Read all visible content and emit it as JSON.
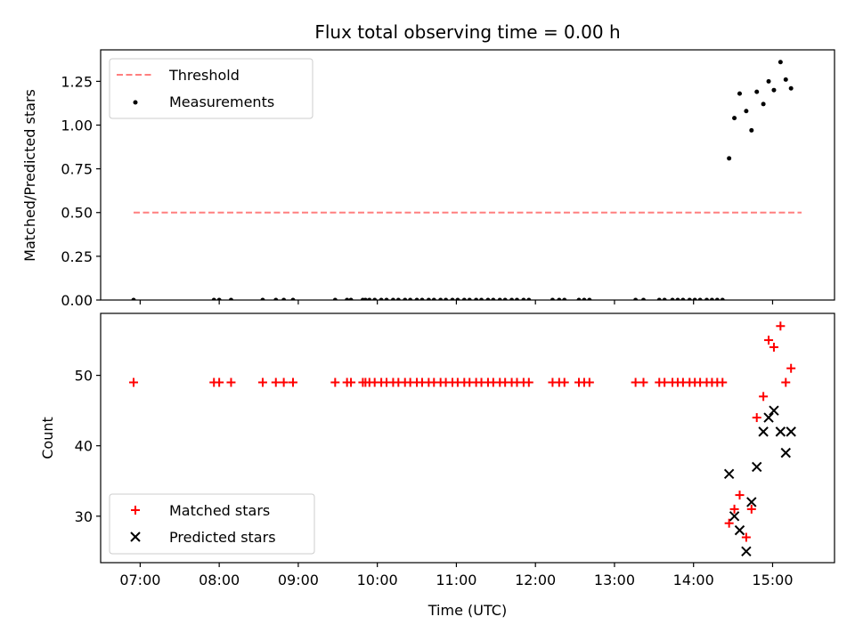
{
  "colors": {
    "measurement": "#000000",
    "threshold": "#ff7f7f",
    "matched": "#ff0000",
    "predicted": "#000000"
  },
  "chart_data": [
    {
      "type": "scatter",
      "title": "Flux total observing time = 0.00 h",
      "xlabel": "",
      "ylabel": "Matched/Predicted stars",
      "xlim": [
        "06:30",
        "15:47"
      ],
      "ylim": [
        0,
        1.43
      ],
      "yticks": [
        "0.00",
        "0.25",
        "0.50",
        "0.75",
        "1.00",
        "1.25"
      ],
      "legend_position": "top-left",
      "threshold": {
        "name": "Threshold",
        "value": 0.5,
        "x": [
          "06:55",
          "15:22"
        ]
      },
      "measurements": {
        "name": "Measurements",
        "zero_times": [
          "06:55",
          "07:56",
          "08:00",
          "08:09",
          "08:33",
          "08:43",
          "08:49",
          "08:56",
          "09:28",
          "09:37",
          "09:40",
          "09:49",
          "09:51",
          "09:54",
          "09:58",
          "10:03",
          "10:07",
          "10:12",
          "10:16",
          "10:21",
          "10:25",
          "10:30",
          "10:34",
          "10:39",
          "10:43",
          "10:48",
          "10:52",
          "10:57",
          "11:01",
          "11:06",
          "11:10",
          "11:15",
          "11:19",
          "11:24",
          "11:28",
          "11:33",
          "11:37",
          "11:42",
          "11:46",
          "11:51",
          "11:55",
          "12:13",
          "12:18",
          "12:22",
          "12:33",
          "12:37",
          "12:41",
          "13:16",
          "13:22",
          "13:34",
          "13:38",
          "13:44",
          "13:48",
          "13:52",
          "13:57",
          "14:01",
          "14:05",
          "14:10",
          "14:14",
          "14:18",
          "14:22"
        ],
        "points": [
          {
            "x": "14:27",
            "y": 0.81
          },
          {
            "x": "14:31",
            "y": 1.04
          },
          {
            "x": "14:35",
            "y": 1.18
          },
          {
            "x": "14:40",
            "y": 1.08
          },
          {
            "x": "14:44",
            "y": 0.97
          },
          {
            "x": "14:48",
            "y": 1.19
          },
          {
            "x": "14:53",
            "y": 1.12
          },
          {
            "x": "14:57",
            "y": 1.25
          },
          {
            "x": "15:01",
            "y": 1.2
          },
          {
            "x": "15:06",
            "y": 1.36
          },
          {
            "x": "15:10",
            "y": 1.26
          },
          {
            "x": "15:14",
            "y": 1.21
          }
        ]
      }
    },
    {
      "type": "scatter",
      "xlabel": "Time (UTC)",
      "ylabel": "Count",
      "xlim": [
        "06:30",
        "15:47"
      ],
      "ylim": [
        23.4,
        58.8
      ],
      "yticks": [
        "30",
        "40",
        "50"
      ],
      "xticks": [
        "07:00",
        "08:00",
        "09:00",
        "10:00",
        "11:00",
        "12:00",
        "13:00",
        "14:00",
        "15:00"
      ],
      "legend_position": "bottom-left",
      "series": [
        {
          "name": "Matched stars",
          "marker": "plus",
          "constant_value": 49,
          "constant_times": [
            "06:55",
            "07:56",
            "08:00",
            "08:09",
            "08:33",
            "08:43",
            "08:49",
            "08:56",
            "09:28",
            "09:37",
            "09:40",
            "09:49",
            "09:51",
            "09:54",
            "09:58",
            "10:03",
            "10:07",
            "10:12",
            "10:16",
            "10:21",
            "10:25",
            "10:30",
            "10:34",
            "10:39",
            "10:43",
            "10:48",
            "10:52",
            "10:57",
            "11:01",
            "11:06",
            "11:10",
            "11:15",
            "11:19",
            "11:24",
            "11:28",
            "11:33",
            "11:37",
            "11:42",
            "11:46",
            "11:51",
            "11:55",
            "12:13",
            "12:18",
            "12:22",
            "12:33",
            "12:37",
            "12:41",
            "13:16",
            "13:22",
            "13:34",
            "13:38",
            "13:44",
            "13:48",
            "13:52",
            "13:57",
            "14:01",
            "14:05",
            "14:10",
            "14:14",
            "14:18",
            "14:22"
          ],
          "points": [
            {
              "x": "14:27",
              "y": 29
            },
            {
              "x": "14:31",
              "y": 31
            },
            {
              "x": "14:35",
              "y": 33
            },
            {
              "x": "14:40",
              "y": 27
            },
            {
              "x": "14:44",
              "y": 31
            },
            {
              "x": "14:48",
              "y": 44
            },
            {
              "x": "14:53",
              "y": 47
            },
            {
              "x": "14:57",
              "y": 55
            },
            {
              "x": "15:01",
              "y": 54
            },
            {
              "x": "15:06",
              "y": 57
            },
            {
              "x": "15:10",
              "y": 49
            },
            {
              "x": "15:14",
              "y": 51
            }
          ]
        },
        {
          "name": "Predicted stars",
          "marker": "x",
          "points": [
            {
              "x": "14:27",
              "y": 36
            },
            {
              "x": "14:31",
              "y": 30
            },
            {
              "x": "14:35",
              "y": 28
            },
            {
              "x": "14:40",
              "y": 25
            },
            {
              "x": "14:44",
              "y": 32
            },
            {
              "x": "14:48",
              "y": 37
            },
            {
              "x": "14:53",
              "y": 42
            },
            {
              "x": "14:57",
              "y": 44
            },
            {
              "x": "15:01",
              "y": 45
            },
            {
              "x": "15:06",
              "y": 42
            },
            {
              "x": "15:10",
              "y": 39
            },
            {
              "x": "15:14",
              "y": 42
            }
          ]
        }
      ]
    }
  ]
}
